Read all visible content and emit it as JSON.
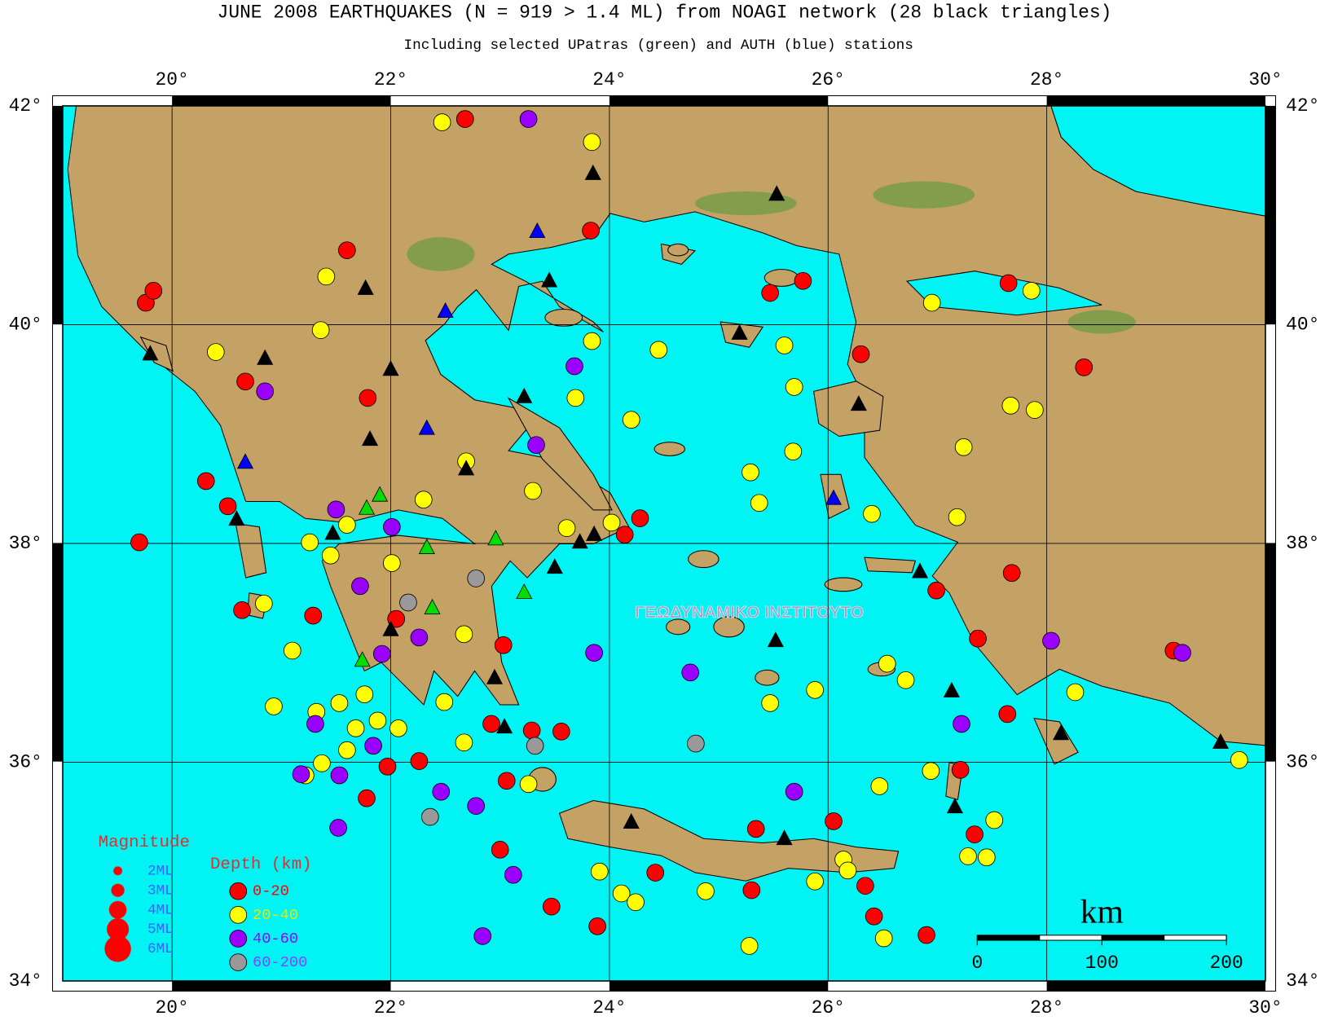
{
  "chart_data": {
    "type": "scatter",
    "title": "JUNE 2008 EARTHQUAKES (N = 919 > 1.4 ML) from NOAGI network (28 black triangles)",
    "subtitle": "Including selected UPatras (green) and AUTH (blue) stations",
    "watermark": "ΓΕΩΔΥΝΑΜΙΚΟ ΙΝΣΤΙΤΟΥΤΟ",
    "xlim": [
      19,
      30
    ],
    "ylim": [
      34,
      42
    ],
    "grid": true,
    "xticks": [
      {
        "value": 20,
        "label": "20°"
      },
      {
        "value": 22,
        "label": "22°"
      },
      {
        "value": 24,
        "label": "24°"
      },
      {
        "value": 26,
        "label": "26°"
      },
      {
        "value": 28,
        "label": "28°"
      },
      {
        "value": 30,
        "label": "30°"
      }
    ],
    "yticks": [
      {
        "value": 34,
        "label": "34°"
      },
      {
        "value": 36,
        "label": "36°"
      },
      {
        "value": 38,
        "label": "38°"
      },
      {
        "value": 40,
        "label": "40°"
      },
      {
        "value": 42,
        "label": "42°"
      }
    ],
    "legend_title": "Depth (km)",
    "series": [
      {
        "name": "0-20",
        "color": "#ff0000",
        "x": [
          22.68,
          19.76,
          19.83,
          21.6,
          23.83,
          25.77,
          25.47,
          27.65,
          28.34,
          26.3,
          21.79,
          20.67,
          20.31,
          20.51,
          19.7,
          20.64,
          21.29,
          22.05,
          23.03,
          24.14,
          24.28,
          26.99,
          27.37,
          27.68,
          27.64,
          27.21,
          27.34,
          26.05,
          26.34,
          26.9,
          26.42,
          21.97,
          21.78,
          22.26,
          23.06,
          23.29,
          22.92,
          23.56,
          23.0,
          23.47,
          23.89,
          24.42,
          25.34,
          25.3,
          29.16
        ],
        "y": [
          41.88,
          40.2,
          40.31,
          40.68,
          40.86,
          40.4,
          40.29,
          40.38,
          39.61,
          39.73,
          39.33,
          39.48,
          38.57,
          38.34,
          38.01,
          37.39,
          37.34,
          37.31,
          37.07,
          38.08,
          38.23,
          37.57,
          37.13,
          37.73,
          36.44,
          35.93,
          35.34,
          35.46,
          34.87,
          34.42,
          34.59,
          35.96,
          35.67,
          36.01,
          35.83,
          36.29,
          36.35,
          36.28,
          35.2,
          34.68,
          34.5,
          34.99,
          35.39,
          34.83,
          37.02
        ]
      },
      {
        "name": "20-40",
        "color": "#ffff00",
        "x": [
          22.47,
          23.84,
          21.41,
          21.36,
          20.4,
          23.84,
          24.45,
          25.6,
          25.69,
          26.95,
          27.86,
          27.67,
          27.89,
          27.24,
          27.18,
          26.4,
          25.29,
          25.37,
          25.68,
          23.61,
          24.02,
          24.2,
          23.69,
          22.69,
          23.3,
          21.45,
          21.26,
          21.6,
          22.01,
          22.3,
          22.67,
          20.84,
          21.1,
          20.93,
          21.32,
          21.53,
          21.76,
          21.68,
          21.88,
          21.6,
          21.37,
          21.22,
          22.07,
          22.49,
          22.67,
          23.26,
          23.91,
          24.11,
          24.24,
          24.88,
          25.88,
          26.14,
          26.18,
          26.51,
          25.28,
          27.28,
          27.52,
          27.45,
          29.76,
          28.26,
          26.94,
          26.47,
          25.47,
          25.88,
          26.71,
          26.54
        ],
        "y": [
          41.85,
          41.67,
          40.44,
          39.95,
          39.75,
          39.85,
          39.77,
          39.81,
          39.43,
          40.2,
          40.31,
          39.26,
          39.22,
          38.88,
          38.24,
          38.27,
          38.65,
          38.37,
          38.84,
          38.14,
          38.19,
          39.13,
          39.33,
          38.75,
          38.48,
          37.89,
          38.01,
          38.17,
          37.82,
          38.4,
          37.17,
          37.45,
          37.02,
          36.51,
          36.46,
          36.54,
          36.62,
          36.31,
          36.38,
          36.11,
          35.99,
          35.88,
          36.31,
          36.55,
          36.18,
          35.8,
          35.0,
          34.8,
          34.72,
          34.82,
          34.91,
          35.11,
          35.01,
          34.39,
          34.32,
          35.14,
          35.47,
          35.13,
          36.02,
          36.64,
          35.92,
          35.78,
          36.54,
          36.66,
          36.75,
          36.9
        ]
      },
      {
        "name": "40-60",
        "color": "#9900ff",
        "x": [
          23.26,
          23.68,
          20.85,
          21.5,
          22.01,
          21.72,
          22.26,
          21.92,
          23.86,
          24.74,
          27.22,
          28.04,
          29.24,
          21.31,
          21.18,
          21.53,
          21.84,
          21.52,
          22.46,
          22.78,
          23.12,
          25.69,
          22.84,
          23.33
        ],
        "y": [
          41.88,
          39.62,
          39.39,
          38.31,
          38.15,
          37.61,
          37.14,
          36.99,
          37.0,
          36.82,
          36.35,
          37.11,
          37.0,
          36.35,
          35.89,
          35.88,
          36.15,
          35.4,
          35.73,
          35.6,
          34.97,
          35.73,
          34.41,
          38.9
        ]
      },
      {
        "name": "60-200",
        "color": "#999999",
        "x": [
          22.78,
          22.16,
          23.32,
          24.79,
          22.36
        ],
        "y": [
          37.68,
          37.46,
          36.15,
          36.17,
          35.5
        ]
      }
    ],
    "stations": [
      {
        "color": "#000000",
        "x": [
          23.85,
          25.53,
          21.77,
          23.45,
          19.8,
          20.85,
          22.0,
          23.22,
          21.81,
          22.69,
          20.59,
          21.47,
          23.73,
          23.86,
          23.5,
          25.19,
          26.28,
          26.84,
          25.52,
          22.0,
          22.95,
          23.04,
          27.13,
          24.2,
          25.6,
          27.16,
          28.13,
          29.59
        ],
        "y": [
          41.38,
          41.19,
          40.33,
          40.4,
          39.73,
          39.69,
          39.59,
          39.34,
          38.95,
          38.68,
          38.22,
          38.09,
          38.01,
          38.08,
          37.78,
          39.92,
          39.27,
          37.74,
          37.11,
          37.21,
          36.77,
          36.32,
          36.65,
          35.45,
          35.3,
          35.59,
          36.26,
          36.18
        ]
      },
      {
        "color": "#00dd00",
        "x": [
          21.9,
          21.78,
          22.33,
          22.96,
          22.38,
          23.22,
          21.74
        ],
        "y": [
          38.44,
          38.32,
          37.96,
          38.04,
          37.41,
          37.55,
          36.93
        ]
      },
      {
        "color": "#0000ff",
        "x": [
          23.34,
          22.5,
          22.33,
          20.67,
          26.05
        ],
        "y": [
          40.85,
          40.12,
          39.05,
          38.74,
          38.41
        ]
      }
    ],
    "magnitude_legend": {
      "title": "Magnitude",
      "sizes": [
        {
          "value": 2,
          "label": "2ML"
        },
        {
          "value": 3,
          "label": "3ML"
        },
        {
          "value": 4,
          "label": "4ML"
        },
        {
          "value": 5,
          "label": "5ML"
        },
        {
          "value": 6,
          "label": "6ML"
        }
      ]
    },
    "scale_bar": {
      "label": "km",
      "ticks": [
        0,
        100,
        200
      ]
    }
  }
}
